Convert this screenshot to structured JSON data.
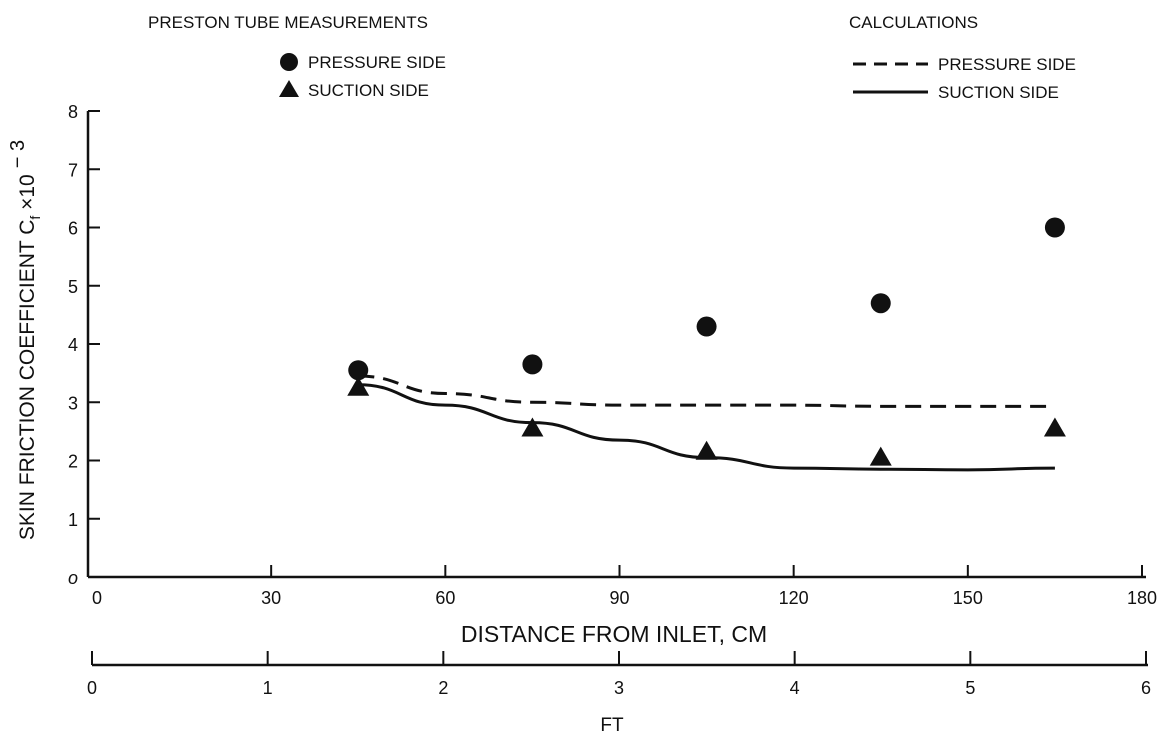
{
  "chart_data": {
    "type": "scatter",
    "legend_measurements": {
      "title": "PRESTON TUBE MEASUREMENTS",
      "items": [
        "PRESSURE SIDE",
        "SUCTION SIDE"
      ]
    },
    "legend_calculations": {
      "title": "CALCULATIONS",
      "items": [
        "PRESSURE SIDE",
        "SUCTION SIDE"
      ]
    },
    "ylabel": "SKIN FRICTION COEFFICIENT C",
    "ylabel_sub": "f",
    "ylabel_suffix": "×10",
    "ylabel_exp": "− 3",
    "xlabel": "DISTANCE FROM INLET, CM",
    "x2label": "FT",
    "xlim": [
      0,
      180
    ],
    "ylim": [
      0,
      8
    ],
    "x2lim": [
      0,
      6
    ],
    "xticks": [
      "0",
      "30",
      "60",
      "90",
      "120",
      "150",
      "180"
    ],
    "yticks": [
      "o",
      "1",
      "2",
      "3",
      "4",
      "5",
      "6",
      "7",
      "8"
    ],
    "x2ticks": [
      "0",
      "1",
      "2",
      "3",
      "4",
      "5",
      "6"
    ],
    "grid": false,
    "legend_placement": "top",
    "series": [
      {
        "name": "PRESSURE SIDE",
        "kind": "measurement",
        "marker": "circle",
        "points": [
          [
            45,
            3.55
          ],
          [
            75,
            3.65
          ],
          [
            105,
            4.3
          ],
          [
            135,
            4.7
          ],
          [
            165,
            6.0
          ]
        ]
      },
      {
        "name": "SUCTION SIDE",
        "kind": "measurement",
        "marker": "triangle",
        "points": [
          [
            45,
            3.25
          ],
          [
            75,
            2.55
          ],
          [
            105,
            2.15
          ],
          [
            135,
            2.05
          ],
          [
            165,
            2.55
          ]
        ]
      },
      {
        "name": "PRESSURE SIDE",
        "kind": "calculation",
        "line": "dashed",
        "points": [
          [
            45,
            3.45
          ],
          [
            60,
            3.15
          ],
          [
            75,
            3.0
          ],
          [
            90,
            2.95
          ],
          [
            105,
            2.95
          ],
          [
            120,
            2.95
          ],
          [
            135,
            2.93
          ],
          [
            150,
            2.93
          ],
          [
            165,
            2.93
          ]
        ]
      },
      {
        "name": "SUCTION SIDE",
        "kind": "calculation",
        "line": "solid",
        "points": [
          [
            45,
            3.3
          ],
          [
            60,
            2.95
          ],
          [
            75,
            2.65
          ],
          [
            90,
            2.35
          ],
          [
            105,
            2.05
          ],
          [
            120,
            1.87
          ],
          [
            135,
            1.85
          ],
          [
            150,
            1.84
          ],
          [
            165,
            1.87
          ]
        ]
      }
    ]
  }
}
